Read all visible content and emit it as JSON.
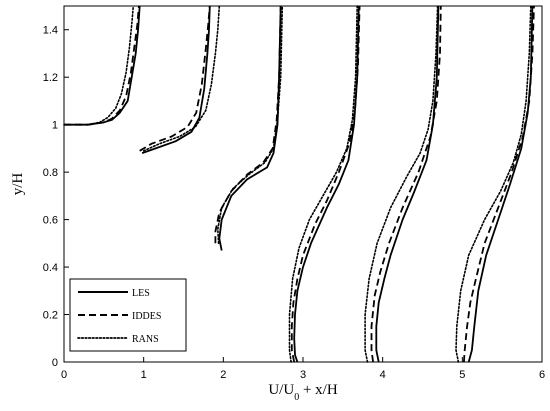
{
  "chart_data": {
    "type": "line",
    "xlabel_parts": [
      "U/U",
      "0",
      " + x/H"
    ],
    "ylabel": "y/H",
    "xlim": [
      0,
      6
    ],
    "ylim": [
      0,
      1.5
    ],
    "x_ticks": [
      0,
      1,
      2,
      3,
      4,
      5,
      6
    ],
    "y_ticks": [
      0,
      0.2,
      0.4,
      0.6,
      0.8,
      1,
      1.2,
      1.4
    ],
    "x_tick_labels": [
      "0",
      "1",
      "2",
      "3",
      "4",
      "5",
      "6"
    ],
    "y_tick_labels": [
      "0",
      "0.2",
      "0.4",
      "0.6",
      "0.8",
      "1",
      "1.2",
      "1.4"
    ],
    "grid": false,
    "legend_position": "bottom-left",
    "series": [
      {
        "name": "LES",
        "style": "solid",
        "profiles": [
          [
            [
              0.0,
              1.0
            ],
            [
              0.3,
              1.0
            ],
            [
              0.5,
              1.01
            ],
            [
              0.6,
              1.02
            ],
            [
              0.7,
              1.05
            ],
            [
              0.8,
              1.1
            ],
            [
              0.85,
              1.2
            ],
            [
              0.9,
              1.3
            ],
            [
              0.93,
              1.4
            ],
            [
              0.95,
              1.5
            ]
          ],
          [
            [
              0.98,
              0.88
            ],
            [
              1.15,
              0.9
            ],
            [
              1.4,
              0.93
            ],
            [
              1.6,
              0.97
            ],
            [
              1.7,
              1.03
            ],
            [
              1.76,
              1.15
            ],
            [
              1.8,
              1.3
            ],
            [
              1.82,
              1.4
            ],
            [
              1.83,
              1.5
            ]
          ],
          [
            [
              1.98,
              0.47
            ],
            [
              1.95,
              0.52
            ],
            [
              1.98,
              0.6
            ],
            [
              2.1,
              0.7
            ],
            [
              2.3,
              0.77
            ],
            [
              2.55,
              0.82
            ],
            [
              2.63,
              0.88
            ],
            [
              2.68,
              1.0
            ],
            [
              2.7,
              1.2
            ],
            [
              2.72,
              1.5
            ]
          ],
          [
            [
              2.93,
              0.0
            ],
            [
              2.9,
              0.03
            ],
            [
              2.89,
              0.1
            ],
            [
              2.9,
              0.2
            ],
            [
              2.93,
              0.3
            ],
            [
              3.0,
              0.4
            ],
            [
              3.1,
              0.5
            ],
            [
              3.3,
              0.65
            ],
            [
              3.45,
              0.75
            ],
            [
              3.57,
              0.85
            ],
            [
              3.64,
              1.0
            ],
            [
              3.68,
              1.2
            ],
            [
              3.7,
              1.5
            ]
          ],
          [
            [
              3.95,
              0.0
            ],
            [
              3.92,
              0.05
            ],
            [
              3.92,
              0.15
            ],
            [
              3.95,
              0.25
            ],
            [
              4.02,
              0.35
            ],
            [
              4.1,
              0.45
            ],
            [
              4.25,
              0.6
            ],
            [
              4.4,
              0.72
            ],
            [
              4.55,
              0.85
            ],
            [
              4.63,
              1.0
            ],
            [
              4.68,
              1.2
            ],
            [
              4.7,
              1.5
            ]
          ],
          [
            [
              5.08,
              0.0
            ],
            [
              5.12,
              0.05
            ],
            [
              5.15,
              0.15
            ],
            [
              5.2,
              0.3
            ],
            [
              5.3,
              0.45
            ],
            [
              5.45,
              0.6
            ],
            [
              5.6,
              0.75
            ],
            [
              5.74,
              0.9
            ],
            [
              5.82,
              1.05
            ],
            [
              5.86,
              1.2
            ],
            [
              5.88,
              1.5
            ]
          ]
        ]
      },
      {
        "name": "IDDES",
        "style": "dashed",
        "profiles": [
          [
            [
              0.0,
              1.0
            ],
            [
              0.3,
              1.0
            ],
            [
              0.5,
              1.01
            ],
            [
              0.6,
              1.025
            ],
            [
              0.7,
              1.06
            ],
            [
              0.78,
              1.12
            ],
            [
              0.84,
              1.22
            ],
            [
              0.88,
              1.32
            ],
            [
              0.92,
              1.42
            ],
            [
              0.94,
              1.5
            ]
          ],
          [
            [
              0.95,
              0.89
            ],
            [
              1.1,
              0.92
            ],
            [
              1.35,
              0.95
            ],
            [
              1.55,
              0.99
            ],
            [
              1.66,
              1.05
            ],
            [
              1.73,
              1.17
            ],
            [
              1.78,
              1.32
            ],
            [
              1.81,
              1.42
            ],
            [
              1.83,
              1.5
            ]
          ],
          [
            [
              1.9,
              0.5
            ],
            [
              1.9,
              0.55
            ],
            [
              1.95,
              0.63
            ],
            [
              2.1,
              0.72
            ],
            [
              2.3,
              0.79
            ],
            [
              2.5,
              0.84
            ],
            [
              2.62,
              0.9
            ],
            [
              2.67,
              1.02
            ],
            [
              2.7,
              1.2
            ],
            [
              2.72,
              1.5
            ]
          ],
          [
            [
              2.89,
              0.0
            ],
            [
              2.86,
              0.05
            ],
            [
              2.86,
              0.15
            ],
            [
              2.88,
              0.25
            ],
            [
              2.93,
              0.35
            ],
            [
              3.0,
              0.45
            ],
            [
              3.15,
              0.58
            ],
            [
              3.3,
              0.68
            ],
            [
              3.45,
              0.8
            ],
            [
              3.58,
              0.92
            ],
            [
              3.65,
              1.05
            ],
            [
              3.69,
              1.25
            ],
            [
              3.71,
              1.5
            ]
          ],
          [
            [
              3.88,
              0.0
            ],
            [
              3.86,
              0.05
            ],
            [
              3.86,
              0.15
            ],
            [
              3.9,
              0.28
            ],
            [
              3.97,
              0.38
            ],
            [
              4.08,
              0.5
            ],
            [
              4.25,
              0.65
            ],
            [
              4.45,
              0.8
            ],
            [
              4.6,
              0.95
            ],
            [
              4.68,
              1.1
            ],
            [
              4.72,
              1.3
            ],
            [
              4.73,
              1.5
            ]
          ],
          [
            [
              5.02,
              0.0
            ],
            [
              5.03,
              0.05
            ],
            [
              5.06,
              0.15
            ],
            [
              5.1,
              0.25
            ],
            [
              5.17,
              0.35
            ],
            [
              5.28,
              0.5
            ],
            [
              5.45,
              0.65
            ],
            [
              5.62,
              0.8
            ],
            [
              5.76,
              0.95
            ],
            [
              5.84,
              1.1
            ],
            [
              5.88,
              1.3
            ],
            [
              5.9,
              1.5
            ]
          ]
        ]
      },
      {
        "name": "RANS",
        "style": "dotted",
        "profiles": [
          [
            [
              0.0,
              1.0
            ],
            [
              0.3,
              1.0
            ],
            [
              0.45,
              1.01
            ],
            [
              0.55,
              1.03
            ],
            [
              0.65,
              1.07
            ],
            [
              0.72,
              1.13
            ],
            [
              0.78,
              1.22
            ],
            [
              0.82,
              1.32
            ],
            [
              0.85,
              1.42
            ],
            [
              0.87,
              1.5
            ]
          ],
          [
            [
              1.0,
              0.89
            ],
            [
              1.2,
              0.92
            ],
            [
              1.45,
              0.95
            ],
            [
              1.65,
              0.99
            ],
            [
              1.78,
              1.06
            ],
            [
              1.85,
              1.17
            ],
            [
              1.9,
              1.3
            ],
            [
              1.93,
              1.4
            ],
            [
              1.95,
              1.5
            ]
          ],
          [
            [
              1.94,
              0.5
            ],
            [
              1.93,
              0.56
            ],
            [
              1.98,
              0.65
            ],
            [
              2.12,
              0.73
            ],
            [
              2.32,
              0.79
            ],
            [
              2.52,
              0.84
            ],
            [
              2.63,
              0.9
            ],
            [
              2.68,
              1.02
            ],
            [
              2.72,
              1.2
            ],
            [
              2.74,
              1.5
            ]
          ],
          [
            [
              2.85,
              0.0
            ],
            [
              2.83,
              0.05
            ],
            [
              2.83,
              0.2
            ],
            [
              2.87,
              0.35
            ],
            [
              2.95,
              0.48
            ],
            [
              3.08,
              0.6
            ],
            [
              3.25,
              0.7
            ],
            [
              3.42,
              0.8
            ],
            [
              3.55,
              0.9
            ],
            [
              3.62,
              1.02
            ],
            [
              3.66,
              1.2
            ],
            [
              3.68,
              1.5
            ]
          ],
          [
            [
              3.81,
              0.0
            ],
            [
              3.78,
              0.05
            ],
            [
              3.78,
              0.2
            ],
            [
              3.83,
              0.35
            ],
            [
              3.93,
              0.5
            ],
            [
              4.1,
              0.65
            ],
            [
              4.3,
              0.78
            ],
            [
              4.47,
              0.88
            ],
            [
              4.57,
              0.98
            ],
            [
              4.63,
              1.1
            ],
            [
              4.67,
              1.3
            ],
            [
              4.69,
              1.5
            ]
          ],
          [
            [
              4.95,
              0.0
            ],
            [
              4.92,
              0.05
            ],
            [
              4.93,
              0.15
            ],
            [
              4.98,
              0.3
            ],
            [
              5.08,
              0.45
            ],
            [
              5.28,
              0.6
            ],
            [
              5.48,
              0.72
            ],
            [
              5.64,
              0.84
            ],
            [
              5.74,
              0.96
            ],
            [
              5.8,
              1.1
            ],
            [
              5.84,
              1.3
            ],
            [
              5.86,
              1.5
            ]
          ]
        ]
      }
    ]
  }
}
